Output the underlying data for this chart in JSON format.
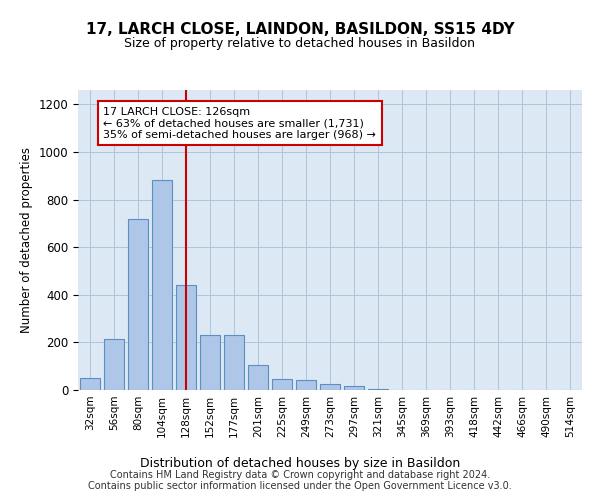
{
  "title": "17, LARCH CLOSE, LAINDON, BASILDON, SS15 4DY",
  "subtitle": "Size of property relative to detached houses in Basildon",
  "xlabel": "Distribution of detached houses by size in Basildon",
  "ylabel": "Number of detached properties",
  "categories": [
    "32sqm",
    "56sqm",
    "80sqm",
    "104sqm",
    "128sqm",
    "152sqm",
    "177sqm",
    "201sqm",
    "225sqm",
    "249sqm",
    "273sqm",
    "297sqm",
    "321sqm",
    "345sqm",
    "369sqm",
    "393sqm",
    "418sqm",
    "442sqm",
    "466sqm",
    "490sqm",
    "514sqm"
  ],
  "values": [
    50,
    215,
    720,
    880,
    440,
    230,
    230,
    105,
    45,
    40,
    25,
    15,
    5,
    2,
    1,
    1,
    0,
    0,
    0,
    0,
    0
  ],
  "bar_color": "#aec6e8",
  "bar_edge_color": "#5a8fc0",
  "vline_color": "#cc0000",
  "annotation_text": "17 LARCH CLOSE: 126sqm\n← 63% of detached houses are smaller (1,731)\n35% of semi-detached houses are larger (968) →",
  "annotation_box_color": "#ffffff",
  "annotation_box_edge": "#cc0000",
  "ylim": [
    0,
    1260
  ],
  "yticks": [
    0,
    200,
    400,
    600,
    800,
    1000,
    1200
  ],
  "background_color": "#ffffff",
  "plot_bg_color": "#dce9f5",
  "grid_color": "#b0c4d8",
  "footer_line1": "Contains HM Land Registry data © Crown copyright and database right 2024.",
  "footer_line2": "Contains public sector information licensed under the Open Government Licence v3.0."
}
